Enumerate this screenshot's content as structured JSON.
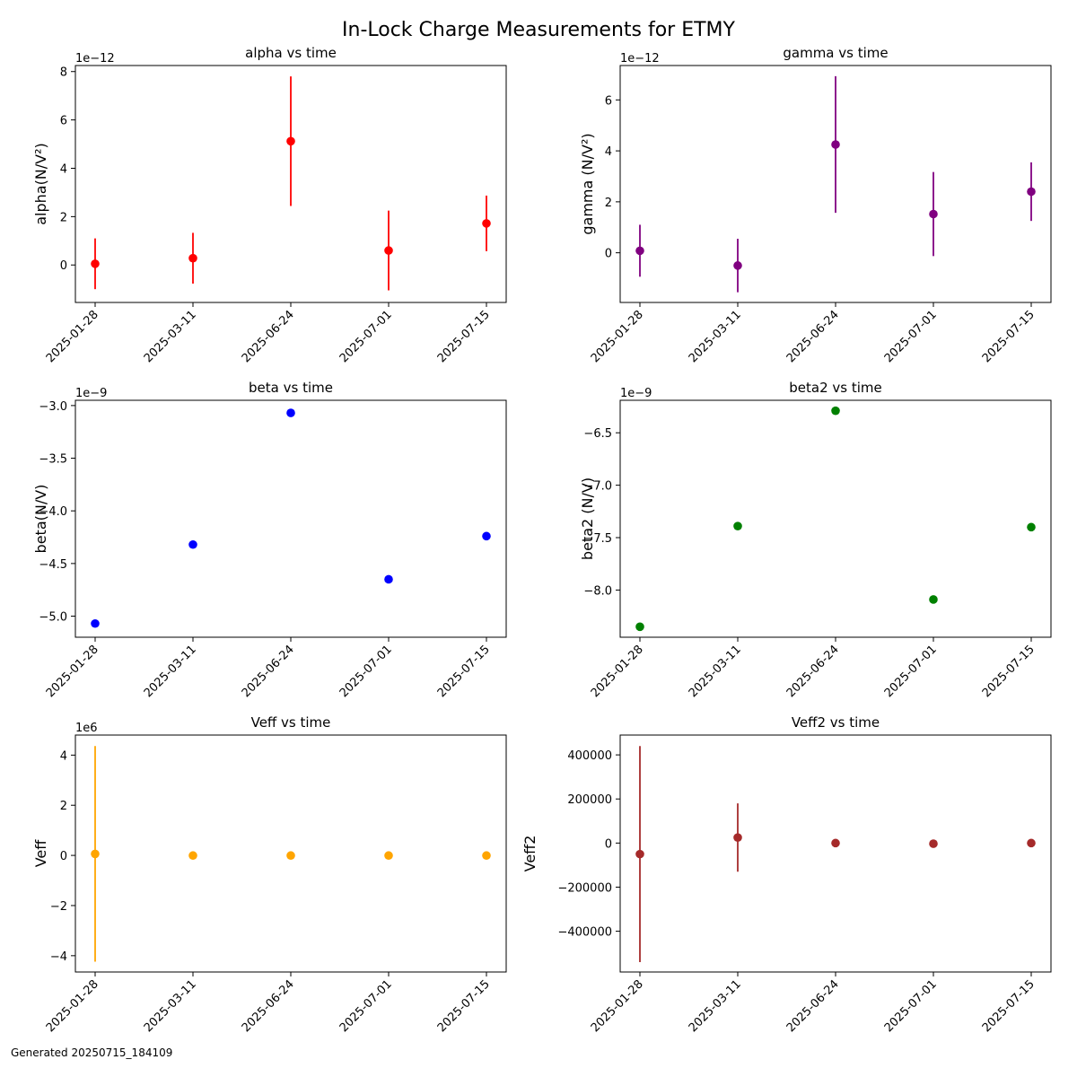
{
  "suptitle": "In-Lock Charge Measurements for ETMY",
  "footer": "Generated 20250715_184109",
  "chart_data": [
    {
      "type": "scatter",
      "title": "alpha vs time",
      "ylabel": "alpha(N/V²)",
      "offset_label": "1e−12",
      "color": "#ff0000",
      "errorbars": true,
      "x": [
        "2025-01-28",
        "2025-03-11",
        "2025-06-24",
        "2025-07-01",
        "2025-07-15"
      ],
      "y": [
        5e-14,
        2.8e-13,
        5.12e-12,
        6e-13,
        1.72e-12
      ],
      "yerr": [
        1.05e-12,
        1.05e-12,
        2.68e-12,
        1.65e-12,
        1.15e-12
      ],
      "ylim": [
        -1.55e-12,
        8.25e-12
      ],
      "yticks": [
        0,
        2e-12,
        4e-12,
        6e-12,
        8e-12
      ],
      "ytick_labels": [
        "0",
        "2",
        "4",
        "6",
        "8"
      ]
    },
    {
      "type": "scatter",
      "title": "gamma vs time",
      "ylabel": "gamma (N/V²)",
      "offset_label": "1e−12",
      "color": "#800080",
      "errorbars": true,
      "x": [
        "2025-01-28",
        "2025-03-11",
        "2025-06-24",
        "2025-07-01",
        "2025-07-15"
      ],
      "y": [
        8e-14,
        -5e-13,
        4.25e-12,
        1.52e-12,
        2.4e-12
      ],
      "yerr": [
        1.02e-12,
        1.05e-12,
        2.68e-12,
        1.65e-12,
        1.15e-12
      ],
      "ylim": [
        -1.95e-12,
        7.35e-12
      ],
      "yticks": [
        0,
        2e-12,
        4e-12,
        6e-12
      ],
      "ytick_labels": [
        "0",
        "2",
        "4",
        "6"
      ]
    },
    {
      "type": "scatter",
      "title": "beta vs time",
      "ylabel": "beta(N/V)",
      "offset_label": "1e−9",
      "color": "#0000ff",
      "errorbars": false,
      "x": [
        "2025-01-28",
        "2025-03-11",
        "2025-06-24",
        "2025-07-01",
        "2025-07-15"
      ],
      "y": [
        -5.07e-09,
        -4.32e-09,
        -3.07e-09,
        -4.65e-09,
        -4.24e-09
      ],
      "ylim": [
        -5.2e-09,
        -2.95e-09
      ],
      "yticks": [
        -5e-09,
        -4.5e-09,
        -4e-09,
        -3.5e-09,
        -3e-09
      ],
      "ytick_labels": [
        "−5.0",
        "−4.5",
        "−4.0",
        "−3.5",
        "−3.0"
      ]
    },
    {
      "type": "scatter",
      "title": "beta2 vs time",
      "ylabel": "beta2 (N/V)",
      "offset_label": "1e−9",
      "color": "#008000",
      "errorbars": false,
      "x": [
        "2025-01-28",
        "2025-03-11",
        "2025-06-24",
        "2025-07-01",
        "2025-07-15"
      ],
      "y": [
        -8.35e-09,
        -7.39e-09,
        -6.29e-09,
        -8.09e-09,
        -7.4e-09
      ],
      "ylim": [
        -8.45e-09,
        -6.19e-09
      ],
      "yticks": [
        -8e-09,
        -7.5e-09,
        -7e-09,
        -6.5e-09
      ],
      "ytick_labels": [
        "−8.0",
        "−7.5",
        "−7.0",
        "−6.5"
      ]
    },
    {
      "type": "scatter",
      "title": "Veff vs time",
      "ylabel": "Veff",
      "offset_label": "1e6",
      "color": "#ffa500",
      "errorbars": true,
      "x": [
        "2025-01-28",
        "2025-03-11",
        "2025-06-24",
        "2025-07-01",
        "2025-07-15"
      ],
      "y": [
        60000,
        -5000,
        -5000,
        -5000,
        -5000
      ],
      "yerr": [
        4300000,
        0,
        0,
        0,
        0
      ],
      "ylim": [
        -4650000,
        4800000
      ],
      "yticks": [
        -4000000,
        -2000000,
        0,
        2000000,
        4000000
      ],
      "ytick_labels": [
        "−4",
        "−2",
        "0",
        "2",
        "4"
      ]
    },
    {
      "type": "scatter",
      "title": "Veff2 vs time",
      "ylabel": "Veff2",
      "offset_label": "",
      "color": "#a52a2a",
      "errorbars": true,
      "x": [
        "2025-01-28",
        "2025-03-11",
        "2025-06-24",
        "2025-07-01",
        "2025-07-15"
      ],
      "y": [
        -50000,
        25000,
        0,
        -3000,
        0
      ],
      "yerr": [
        490000,
        155000,
        0,
        0,
        0
      ],
      "ylim": [
        -585000,
        490000
      ],
      "yticks": [
        -400000,
        -200000,
        0,
        200000,
        400000
      ],
      "ytick_labels": [
        "−400000",
        "−200000",
        "0",
        "200000",
        "400000"
      ]
    }
  ]
}
